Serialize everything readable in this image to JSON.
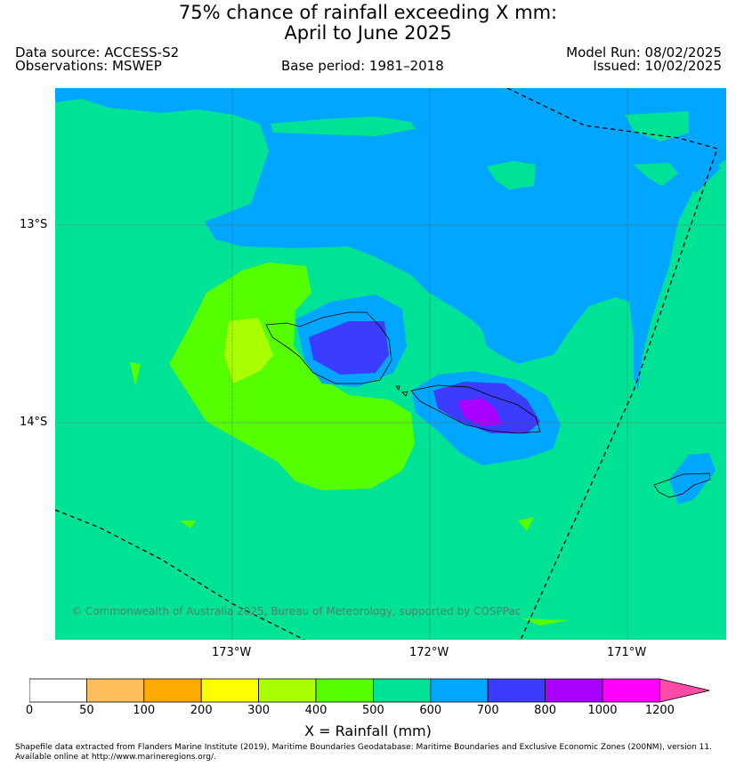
{
  "header": {
    "title_line1": "75% chance of rainfall exceeding X mm:",
    "title_line2": "April to June 2025",
    "data_source": "Data source: ACCESS-S2",
    "observations": "Observations: MSWEP",
    "base_period": "Base period: 1981–2018",
    "model_run": "Model Run: 08/02/2025",
    "issued": "Issued: 10/02/2025"
  },
  "map": {
    "lat_labels": [
      "13°S",
      "14°S"
    ],
    "lon_labels": [
      "173°W",
      "172°W",
      "171°W"
    ],
    "copyright": "© Commonwealth of Australia 2025, Bureau of Meteorology, supported by COSPPac"
  },
  "colorbar": {
    "label": "X = Rainfall (mm)",
    "ticks": [
      "0",
      "50",
      "100",
      "200",
      "300",
      "400",
      "500",
      "600",
      "700",
      "800",
      "1000",
      "1200"
    ],
    "colors": [
      "#ffffff",
      "#ffbf5a",
      "#ffaa00",
      "#ffff00",
      "#aaff00",
      "#55ff00",
      "#00e396",
      "#00a6ff",
      "#3c3cff",
      "#aa00ff",
      "#ff00ff",
      "#ff4aa8"
    ]
  },
  "legend_colors": {
    "500-600": "#00e396",
    "600-700": "#00a6ff",
    "700-800": "#3c3cff",
    "800-1000": "#aa00ff",
    "400-500": "#55ff00",
    "300-400": "#aaff00"
  },
  "footer": {
    "line1": "Shapefile data extracted from Flanders Marine Institute (2019), Maritime Boundaries Geodatabase: Maritime Boundaries and Exclusive Economic Zones (200NM), version 11.",
    "line2": "Available online at http://www.marineregions.org/."
  }
}
